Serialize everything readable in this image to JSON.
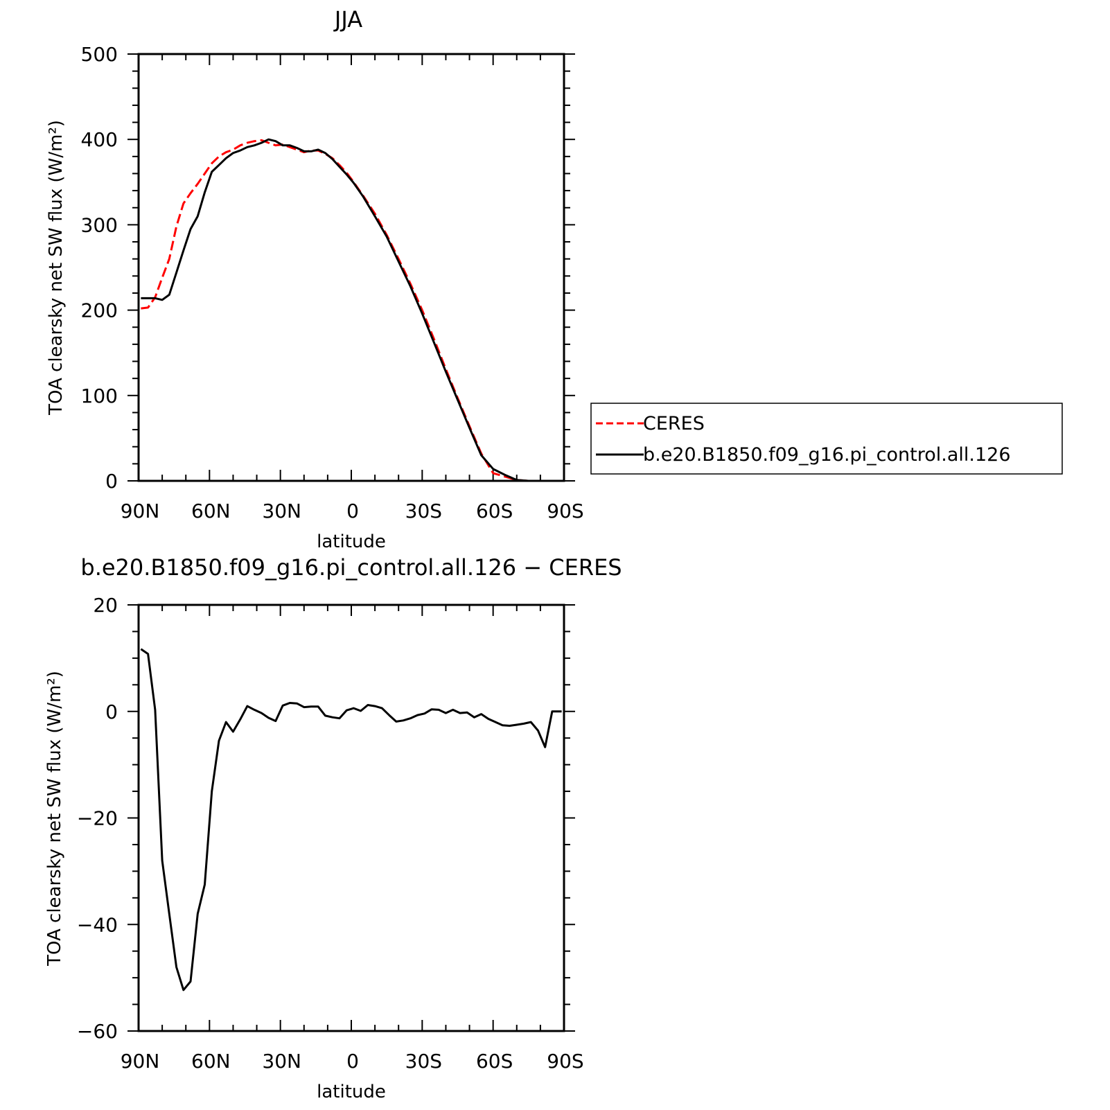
{
  "chart_data": [
    {
      "type": "line",
      "title": "JJA",
      "xlabel": "latitude",
      "ylabel": "TOA clearsky net SW flux (W/m²)",
      "xlim": [
        90,
        -90
      ],
      "ylim": [
        0,
        500
      ],
      "x_tick_labels": [
        "90N",
        "60N",
        "30N",
        "0",
        "30S",
        "60S",
        "90S"
      ],
      "y_tick_labels": [
        "0",
        "100",
        "200",
        "300",
        "400",
        "500"
      ],
      "legend": {
        "placement": "right, outside plot",
        "entries": [
          "CERES",
          "b.e20.B1850.f09_g16.pi_control.all.126"
        ]
      },
      "series": [
        {
          "name": "CERES",
          "color": "#ff0000",
          "dash": "dashed",
          "x": [
            89,
            86,
            83,
            80,
            77,
            74,
            71,
            68,
            65,
            62,
            59,
            56,
            53,
            50,
            47,
            44,
            41,
            38,
            35,
            32,
            29,
            26,
            23,
            20,
            17,
            14,
            11,
            8,
            5,
            2,
            -1,
            -5,
            -10,
            -15,
            -20,
            -25,
            -30,
            -35,
            -40,
            -45,
            -50,
            -55,
            -60,
            -65,
            -70,
            -75,
            -80,
            -85,
            -89
          ],
          "y": [
            202,
            203,
            215,
            238,
            260,
            298,
            325,
            337,
            348,
            360,
            372,
            380,
            385,
            388,
            393,
            396,
            398,
            399,
            396,
            393,
            394,
            391,
            388,
            385,
            387,
            387,
            383,
            378,
            370,
            361,
            350,
            334,
            313,
            288,
            260,
            231,
            200,
            166,
            131,
            97,
            64,
            32,
            9,
            5,
            1,
            0,
            0,
            0,
            0
          ]
        },
        {
          "name": "b.e20.B1850.f09_g16.pi_control.all.126",
          "color": "#000000",
          "dash": "solid",
          "x": [
            89,
            86,
            83,
            80,
            77,
            74,
            71,
            68,
            65,
            62,
            59,
            56,
            53,
            50,
            47,
            44,
            41,
            38,
            35,
            32,
            29,
            26,
            23,
            20,
            17,
            14,
            11,
            8,
            5,
            2,
            -1,
            -5,
            -10,
            -15,
            -20,
            -25,
            -30,
            -35,
            -40,
            -45,
            -50,
            -55,
            -60,
            -65,
            -70,
            -75,
            -80,
            -85,
            -89
          ],
          "y": [
            214,
            214,
            214,
            212,
            218,
            244,
            270,
            295,
            310,
            338,
            362,
            370,
            378,
            384,
            387,
            391,
            393,
            396,
            400,
            398,
            393,
            393,
            390,
            386,
            386,
            388,
            384,
            377,
            368,
            359,
            349,
            333,
            310,
            286,
            257,
            228,
            196,
            162,
            128,
            95,
            62,
            30,
            14,
            7,
            1,
            0,
            0,
            0,
            0
          ]
        }
      ]
    },
    {
      "type": "line",
      "title": "b.e20.B1850.f09_g16.pi_control.all.126 − CERES",
      "xlabel": "latitude",
      "ylabel": "TOA clearsky net SW flux (W/m²)",
      "xlim": [
        90,
        -90
      ],
      "ylim": [
        -60,
        20
      ],
      "x_tick_labels": [
        "90N",
        "60N",
        "30N",
        "0",
        "30S",
        "60S",
        "90S"
      ],
      "y_tick_labels": [
        "−60",
        "−40",
        "−20",
        "0",
        "20"
      ],
      "series": [
        {
          "color": "#000000",
          "dash": "solid",
          "x": [
            89,
            86,
            83,
            80,
            77,
            74,
            71,
            68,
            65,
            62,
            59,
            56,
            53,
            50,
            47,
            44,
            41,
            38,
            35,
            32,
            29,
            26,
            23,
            20,
            17,
            14,
            11,
            8,
            5,
            2,
            -1,
            -4,
            -7,
            -10,
            -13,
            -16,
            -19,
            -22,
            -25,
            -28,
            -31,
            -34,
            -37,
            -40,
            -43,
            -46,
            -49,
            -52,
            -55,
            -58,
            -61,
            -64,
            -67,
            -70,
            -73,
            -76,
            -79,
            -82,
            -85,
            -89
          ],
          "y": [
            11.7,
            10.8,
            0.3,
            -28,
            -38,
            -48,
            -52.3,
            -50.7,
            -38,
            -32.5,
            -15,
            -5.5,
            -2,
            -3.8,
            -1.5,
            1,
            0.3,
            -0.3,
            -1.2,
            -1.8,
            1.1,
            1.6,
            1.5,
            0.8,
            0.9,
            0.9,
            -0.8,
            -1.1,
            -1.3,
            0.2,
            0.6,
            0.1,
            1.2,
            1.0,
            0.6,
            -0.7,
            -1.9,
            -1.7,
            -1.3,
            -0.7,
            -0.4,
            0.4,
            0.3,
            -0.3,
            0.3,
            -0.3,
            -0.2,
            -1.1,
            -0.5,
            -1.4,
            -2,
            -2.6,
            -2.7,
            -2.5,
            -2.3,
            -2,
            -3.6,
            -6.7,
            0,
            0
          ]
        }
      ]
    }
  ]
}
